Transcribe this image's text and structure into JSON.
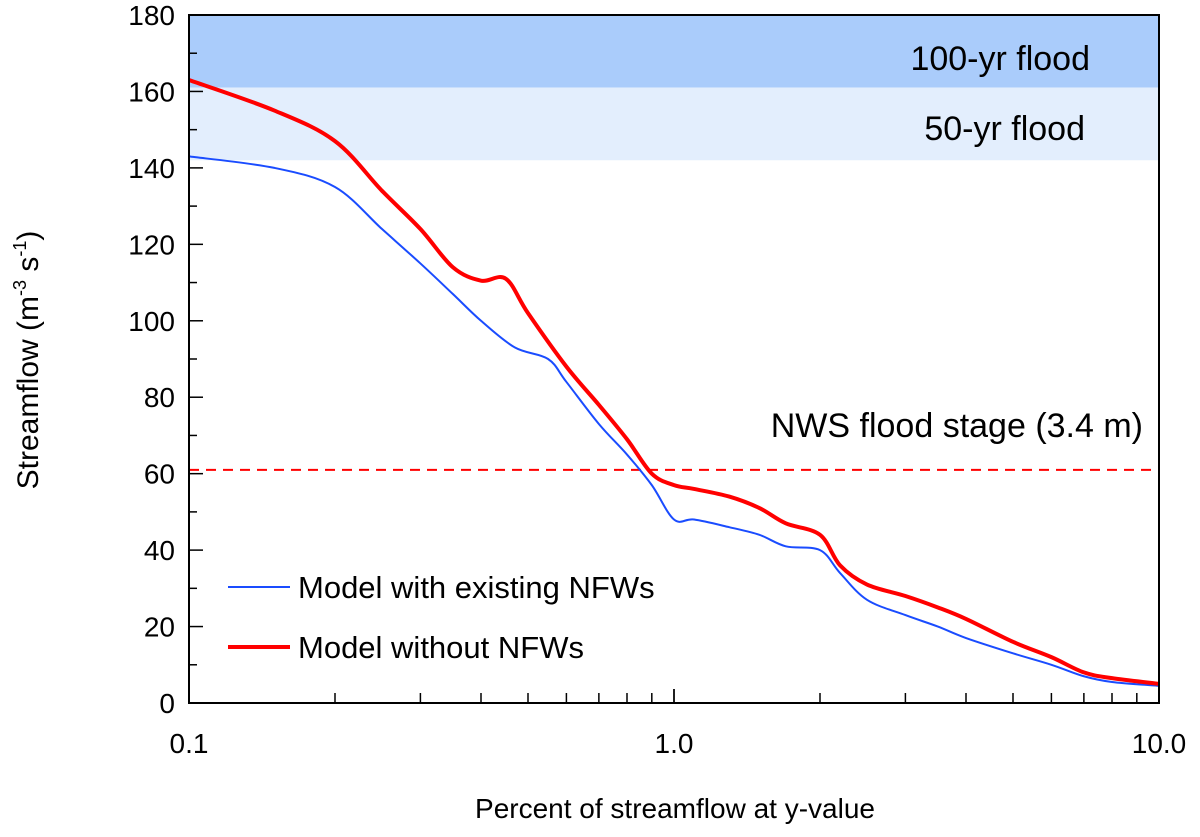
{
  "chart_data": {
    "type": "line",
    "xscale": "log",
    "xlabel": "Percent of streamflow at y-value",
    "ylabel": "Streamflow (m⁻³ s⁻¹)",
    "xlim": [
      0.1,
      10.0
    ],
    "ylim": [
      0,
      180
    ],
    "xticks": [
      "0.1",
      "1.0",
      "10.0"
    ],
    "xtick_values": [
      0.1,
      1.0,
      10.0
    ],
    "yticks": [
      0,
      20,
      40,
      60,
      80,
      100,
      120,
      140,
      160,
      180
    ],
    "bands": [
      {
        "label": "100-yr flood",
        "from": 161,
        "to": 180,
        "color": "#aaccfb"
      },
      {
        "label": "50-yr flood",
        "from": 142,
        "to": 161,
        "color": "#e3eefd"
      }
    ],
    "reference_line": {
      "label": "NWS flood stage (3.4 m)",
      "y": 61,
      "color": "#ff0000"
    },
    "legend_position": "bottom-left",
    "series": [
      {
        "name": "Model with existing NFWs",
        "color": "#1a4cff",
        "x": [
          0.1,
          0.15,
          0.2,
          0.25,
          0.3,
          0.35,
          0.4,
          0.47,
          0.55,
          0.6,
          0.7,
          0.8,
          0.9,
          1.0,
          1.1,
          1.3,
          1.5,
          1.7,
          2.0,
          2.2,
          2.5,
          3.0,
          3.5,
          4.0,
          5.0,
          6.0,
          7.0,
          8.0,
          10.0
        ],
        "y": [
          143,
          140,
          135,
          124,
          115,
          107,
          100,
          93,
          90,
          84,
          73,
          65,
          57,
          48,
          48,
          46,
          44,
          41,
          40,
          34,
          27,
          23,
          20,
          17,
          13,
          10,
          7,
          5.5,
          4.5
        ]
      },
      {
        "name": "Model without NFWs",
        "color": "#ff0000",
        "x": [
          0.1,
          0.15,
          0.2,
          0.25,
          0.3,
          0.35,
          0.4,
          0.45,
          0.5,
          0.6,
          0.7,
          0.8,
          0.9,
          1.0,
          1.1,
          1.3,
          1.5,
          1.7,
          2.0,
          2.2,
          2.5,
          3.0,
          3.5,
          4.0,
          5.0,
          6.0,
          7.0,
          8.0,
          10.0
        ],
        "y": [
          163,
          155,
          147,
          134,
          124,
          114,
          110.5,
          111,
          102,
          88,
          78,
          69,
          60,
          57,
          56,
          54,
          51,
          47,
          44,
          36,
          31,
          28,
          25,
          22,
          16,
          12,
          8,
          6.5,
          5
        ]
      }
    ]
  }
}
